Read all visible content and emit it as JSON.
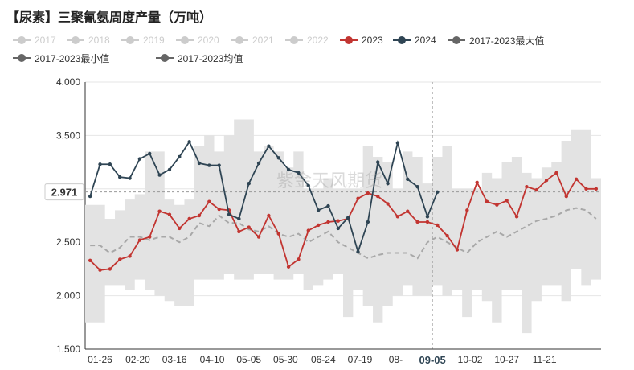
{
  "title": "【尿素】三聚氰氨周度产量（万吨）",
  "watermark": "紫金天风期货",
  "chart_data": {
    "type": "line",
    "ylim": [
      1.5,
      4.0
    ],
    "y_ticks": [
      "1.500",
      "2.000",
      "2.500",
      "3.000",
      "3.500",
      "4.000"
    ],
    "x_ticks": [
      "01-26",
      "02-20",
      "03-16",
      "04-10",
      "05-05",
      "05-30",
      "06-24",
      "07-19",
      "08-",
      "09-05",
      "10-02",
      "10-27",
      "11-21"
    ],
    "crosshair": {
      "x_label": "09-05",
      "y_label": "2.971"
    },
    "grid": "horizontal",
    "legend_placement": "top",
    "legend": [
      {
        "name": "2017",
        "color": "#cccccc",
        "active": false
      },
      {
        "name": "2018",
        "color": "#cccccc",
        "active": false
      },
      {
        "name": "2019",
        "color": "#cccccc",
        "active": false
      },
      {
        "name": "2020",
        "color": "#cccccc",
        "active": false
      },
      {
        "name": "2021",
        "color": "#cccccc",
        "active": false
      },
      {
        "name": "2022",
        "color": "#cccccc",
        "active": false
      },
      {
        "name": "2023",
        "color": "#c23531",
        "active": true
      },
      {
        "name": "2024",
        "color": "#2f4554",
        "active": true
      },
      {
        "name": "2017-2023最大值",
        "color": "#666666",
        "active": true
      },
      {
        "name": "2017-2023最小值",
        "color": "#666666",
        "active": true
      },
      {
        "name": "2017-2023均值",
        "color": "#666666",
        "active": true
      }
    ],
    "x_count": 52,
    "series": [
      {
        "name": "2023",
        "color": "#c23531",
        "values": [
          2.33,
          2.24,
          2.25,
          2.34,
          2.37,
          2.52,
          2.55,
          2.79,
          2.76,
          2.63,
          2.72,
          2.75,
          2.88,
          2.81,
          2.8,
          2.6,
          2.64,
          2.55,
          2.75,
          2.58,
          2.27,
          2.34,
          2.61,
          2.66,
          2.69,
          2.7,
          2.72,
          2.91,
          2.96,
          2.93,
          2.86,
          2.74,
          2.79,
          2.69,
          2.69,
          2.66,
          2.56,
          2.43,
          2.8,
          3.06,
          2.88,
          2.85,
          2.89,
          2.74,
          3.02,
          2.99,
          3.08,
          3.15,
          2.93,
          3.09,
          3.0,
          3.0
        ]
      },
      {
        "name": "2024",
        "color": "#2f4554",
        "values": [
          2.93,
          3.23,
          3.23,
          3.11,
          3.1,
          3.28,
          3.33,
          3.13,
          3.18,
          3.3,
          3.44,
          3.24,
          3.22,
          3.22,
          2.76,
          2.72,
          3.05,
          3.24,
          3.4,
          3.29,
          3.18,
          3.15,
          3.03,
          2.8,
          2.84,
          2.63,
          2.73,
          2.41,
          2.69,
          3.25,
          3.05,
          3.43,
          3.09,
          3.02,
          2.74,
          2.97
        ]
      },
      {
        "name": "2017-2023最大值",
        "color": "#e0e0e0",
        "values": [
          2.85,
          2.85,
          2.72,
          2.8,
          2.9,
          2.95,
          3.35,
          3.35,
          2.9,
          2.85,
          2.9,
          3.4,
          3.5,
          3.35,
          3.5,
          3.65,
          3.65,
          3.35,
          3.4,
          3.35,
          3.2,
          3.35,
          3.0,
          3.0,
          3.1,
          3.0,
          3.0,
          3.0,
          3.4,
          3.3,
          3.25,
          3.0,
          3.35,
          3.3,
          3.05,
          3.3,
          3.4,
          3.0,
          3.0,
          3.0,
          3.15,
          3.1,
          3.25,
          3.3,
          3.15,
          3.1,
          3.2,
          3.25,
          3.45,
          3.55,
          3.55,
          3.1
        ]
      },
      {
        "name": "2017-2023最小值",
        "color": "#e0e0e0",
        "values": [
          1.75,
          1.75,
          2.1,
          2.1,
          2.05,
          2.15,
          2.05,
          2.0,
          1.95,
          1.9,
          1.9,
          2.15,
          2.15,
          2.15,
          2.2,
          2.15,
          2.15,
          2.2,
          2.2,
          2.15,
          2.15,
          2.2,
          2.05,
          2.1,
          2.15,
          2.2,
          1.8,
          2.05,
          1.9,
          1.75,
          1.9,
          2.0,
          2.1,
          2.0,
          2.0,
          2.1,
          2.0,
          2.05,
          1.8,
          2.05,
          1.95,
          1.75,
          2.05,
          2.05,
          1.65,
          1.95,
          2.1,
          2.1,
          1.95,
          2.25,
          2.1,
          2.15
        ]
      },
      {
        "name": "2017-2023均值",
        "color": "#aaaaaa",
        "values": [
          2.47,
          2.47,
          2.4,
          2.45,
          2.55,
          2.55,
          2.52,
          2.55,
          2.55,
          2.5,
          2.55,
          2.68,
          2.65,
          2.75,
          2.68,
          2.68,
          2.62,
          2.6,
          2.65,
          2.58,
          2.55,
          2.58,
          2.5,
          2.55,
          2.6,
          2.5,
          2.45,
          2.4,
          2.35,
          2.38,
          2.4,
          2.4,
          2.4,
          2.35,
          2.5,
          2.55,
          2.5,
          2.45,
          2.4,
          2.5,
          2.55,
          2.6,
          2.55,
          2.6,
          2.65,
          2.7,
          2.72,
          2.75,
          2.8,
          2.82,
          2.8,
          2.72
        ]
      }
    ]
  }
}
